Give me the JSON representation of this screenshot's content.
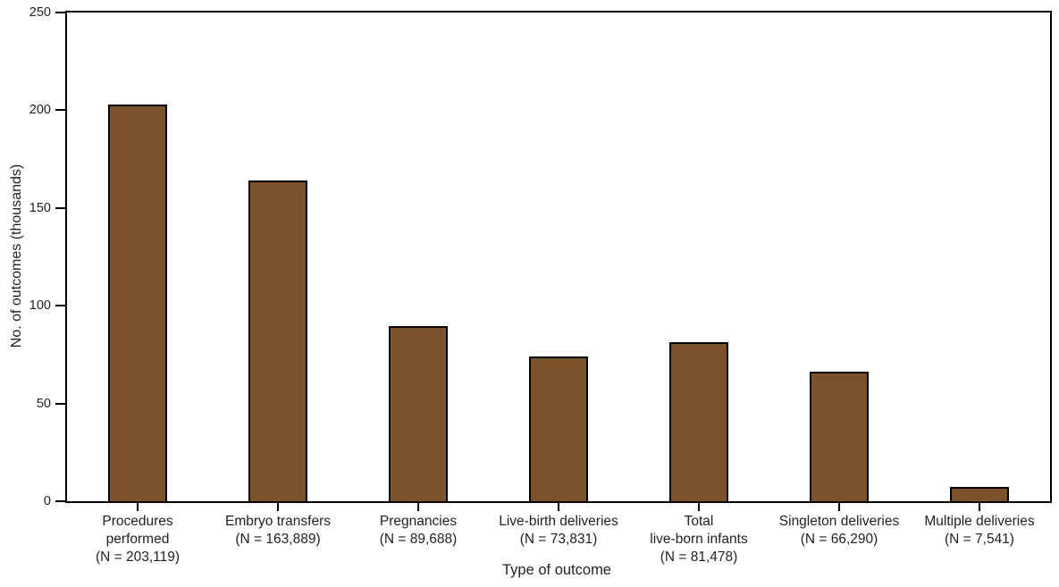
{
  "chart_data": {
    "type": "bar",
    "title": "",
    "xlabel": "Type of outcome",
    "ylabel": "No. of outcomes (thousands)",
    "ylim": [
      0,
      250
    ],
    "yticks": [
      0,
      50,
      100,
      150,
      200,
      250
    ],
    "grid": false,
    "legend": false,
    "bar_color": "#7b5229",
    "bar_border_color": "#000000",
    "axis_color": "#000000",
    "text_color": "#231f20",
    "categories": [
      "Procedures performed",
      "Embryo transfers",
      "Pregnancies",
      "Live-birth deliveries",
      "Total live-born infants",
      "Singleton deliveries",
      "Multiple deliveries"
    ],
    "category_label_lines": [
      [
        "Procedures",
        "performed",
        "(N = 203,119)"
      ],
      [
        "Embryo transfers",
        "(N = 163,889)"
      ],
      [
        "Pregnancies",
        "(N = 89,688)"
      ],
      [
        "Live-birth deliveries",
        "(N = 73,831)"
      ],
      [
        "Total",
        "live-born infants",
        "(N = 81,478)"
      ],
      [
        "Singleton deliveries",
        "(N = 66,290)"
      ],
      [
        "Multiple deliveries",
        "(N = 7,541)"
      ]
    ],
    "values": [
      203.119,
      163.889,
      89.688,
      73.831,
      81.478,
      66.29,
      7.541
    ],
    "n_counts": [
      "203,119",
      "163,889",
      "89,688",
      "73,831",
      "81,478",
      "66,290",
      "7,541"
    ]
  }
}
